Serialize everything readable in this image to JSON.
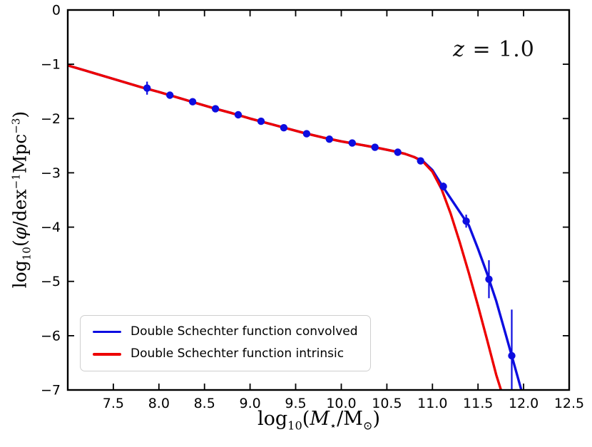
{
  "figure": {
    "annotation": {
      "lhs": "z",
      "rhs": " = 1.0"
    },
    "xlabel": {
      "log": "log",
      "sub": "10",
      "open": "(",
      "mass": "M",
      "star": "⋆",
      "slash": "/",
      "msun": "M",
      "sun": "⊙",
      "close": ")"
    },
    "ylabel": {
      "log": "log",
      "sub": "10",
      "open": "(",
      "phi": "φ",
      "unit1": "/dex",
      "sup1": "−1",
      "unit2": "Mpc",
      "sup2": "−3",
      "close": ")"
    },
    "legend": {
      "items": [
        {
          "label": "Double Schechter function convolved",
          "color": "#0d0de0"
        },
        {
          "label": "Double Schechter function intrinsic",
          "color": "#ed0000"
        }
      ]
    }
  },
  "chart_data": {
    "type": "line",
    "title": "",
    "annotation": "z = 1.0",
    "xlabel": "log10(M⋆/M⊙)",
    "ylabel": "log10(φ/dex−1 Mpc−3)",
    "xlim": [
      7.0,
      12.5
    ],
    "ylim": [
      -7,
      0
    ],
    "grid": false,
    "legend_position": "lower left",
    "xticks": [
      7.5,
      8.0,
      8.5,
      9.0,
      9.5,
      10.0,
      10.5,
      11.0,
      11.5,
      12.0,
      12.5
    ],
    "xtick_labels": [
      "7.5",
      "8.0",
      "8.5",
      "9.0",
      "9.5",
      "10.0",
      "10.5",
      "11.0",
      "11.5",
      "12.0",
      "12.5"
    ],
    "yticks": [
      0,
      -1,
      -2,
      -3,
      -4,
      -5,
      -6,
      -7
    ],
    "ytick_labels": [
      "0",
      "−1",
      "−2",
      "−3",
      "−4",
      "−5",
      "−6",
      "−7"
    ],
    "series": [
      {
        "name": "Double Schechter function convolved",
        "color": "#0d0de0",
        "x": [
          7.0,
          7.2,
          7.4,
          7.6,
          7.8,
          8.0,
          8.2,
          8.4,
          8.6,
          8.8,
          9.0,
          9.2,
          9.4,
          9.6,
          9.8,
          10.0,
          10.2,
          10.4,
          10.6,
          10.7,
          10.8,
          10.9,
          11.0,
          11.1,
          11.2,
          11.3,
          11.4,
          11.5,
          11.6,
          11.7,
          11.8,
          11.9,
          12.0
        ],
        "y": [
          -1.02,
          -1.12,
          -1.22,
          -1.32,
          -1.42,
          -1.51,
          -1.61,
          -1.71,
          -1.81,
          -1.9,
          -2.0,
          -2.09,
          -2.18,
          -2.27,
          -2.35,
          -2.42,
          -2.48,
          -2.54,
          -2.61,
          -2.65,
          -2.71,
          -2.79,
          -2.95,
          -3.22,
          -3.47,
          -3.72,
          -3.97,
          -4.4,
          -4.86,
          -5.36,
          -5.95,
          -6.55,
          -7.15
        ]
      },
      {
        "name": "Double Schechter function intrinsic",
        "color": "#ed0000",
        "x": [
          7.0,
          7.2,
          7.4,
          7.6,
          7.8,
          8.0,
          8.2,
          8.4,
          8.6,
          8.8,
          9.0,
          9.2,
          9.4,
          9.6,
          9.8,
          10.0,
          10.2,
          10.4,
          10.6,
          10.7,
          10.8,
          10.9,
          11.0,
          11.1,
          11.2,
          11.3,
          11.4,
          11.5,
          11.6,
          11.7,
          11.78
        ],
        "y": [
          -1.02,
          -1.12,
          -1.22,
          -1.32,
          -1.42,
          -1.51,
          -1.61,
          -1.71,
          -1.81,
          -1.9,
          -2.0,
          -2.09,
          -2.18,
          -2.27,
          -2.35,
          -2.42,
          -2.48,
          -2.54,
          -2.61,
          -2.65,
          -2.71,
          -2.8,
          -2.98,
          -3.3,
          -3.75,
          -4.28,
          -4.85,
          -5.45,
          -6.08,
          -6.72,
          -7.15
        ]
      }
    ],
    "points": {
      "name": "binned estimates",
      "color": "#0d0de0",
      "x": [
        7.87,
        8.12,
        8.37,
        8.62,
        8.87,
        9.12,
        9.37,
        9.62,
        9.87,
        10.12,
        10.37,
        10.62,
        10.87,
        11.12,
        11.37,
        11.62,
        11.87
      ],
      "y": [
        -1.44,
        -1.57,
        -1.69,
        -1.82,
        -1.93,
        -2.05,
        -2.17,
        -2.28,
        -2.38,
        -2.45,
        -2.53,
        -2.62,
        -2.78,
        -3.25,
        -3.89,
        -4.96,
        -6.37
      ],
      "yerr": [
        0.12,
        0.06,
        0.05,
        0.04,
        0.04,
        0.03,
        0.03,
        0.03,
        0.03,
        0.03,
        0.03,
        0.04,
        0.05,
        0.07,
        0.12,
        0.35,
        0.85
      ]
    }
  }
}
